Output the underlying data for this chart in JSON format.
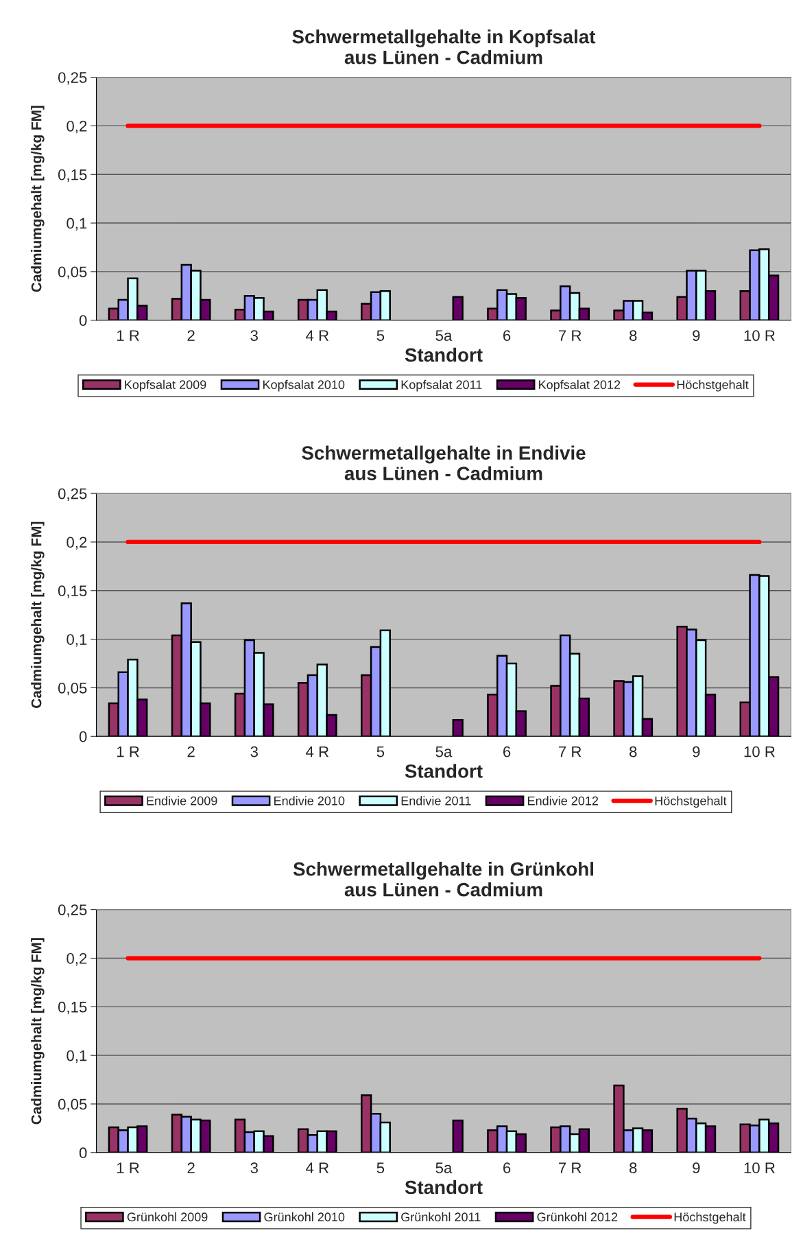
{
  "chart_data": [
    {
      "type": "bar",
      "title": "Schwermetallgehalte in Kopfsalat\naus Lünen - Cadmium",
      "xlabel": "Standort",
      "ylabel": "Cadmiumgehalt [mg/kg FM]",
      "categories": [
        "1 R",
        "2",
        "3",
        "4 R",
        "5",
        "5a",
        "6",
        "7 R",
        "8",
        "9",
        "10 R"
      ],
      "series": [
        {
          "name": "Kopfsalat 2009",
          "color": "#993366",
          "values": [
            0.012,
            0.022,
            0.011,
            0.021,
            0.017,
            null,
            0.012,
            0.01,
            0.01,
            0.024,
            0.03
          ]
        },
        {
          "name": "Kopfsalat 2010",
          "color": "#9999ff",
          "values": [
            0.021,
            0.057,
            0.025,
            0.021,
            0.029,
            null,
            0.031,
            0.035,
            0.02,
            0.051,
            0.072
          ]
        },
        {
          "name": "Kopfsalat 2011",
          "color": "#ccffff",
          "values": [
            0.043,
            0.051,
            0.023,
            0.031,
            0.03,
            null,
            0.027,
            0.028,
            0.02,
            0.051,
            0.073
          ]
        },
        {
          "name": "Kopfsalat 2012",
          "color": "#660066",
          "values": [
            0.015,
            0.021,
            0.009,
            0.009,
            null,
            0.024,
            0.023,
            0.012,
            0.008,
            0.03,
            0.046
          ]
        },
        {
          "name": "Höchstgehalt",
          "type": "line",
          "color": "#ff0000",
          "values": [
            0.2,
            0.2,
            0.2,
            0.2,
            0.2,
            0.2,
            0.2,
            0.2,
            0.2,
            0.2,
            0.2
          ]
        }
      ],
      "ylim": [
        0,
        0.25
      ],
      "yticks": [
        0,
        {
          "value": 0.05,
          "label": "0,05"
        },
        {
          "value": 0.1,
          "label": "0,1"
        },
        {
          "value": 0.15,
          "label": "0,15"
        },
        {
          "value": 0.2,
          "label": "0,2"
        },
        {
          "value": 0.25,
          "label": "0,25"
        }
      ],
      "grid": "y",
      "legend": "bottom"
    },
    {
      "type": "bar",
      "title": "Schwermetallgehalte in Endivie\naus Lünen - Cadmium",
      "xlabel": "Standort",
      "ylabel": "Cadmiumgehalt [mg/kg FM]",
      "categories": [
        "1 R",
        "2",
        "3",
        "4 R",
        "5",
        "5a",
        "6",
        "7 R",
        "8",
        "9",
        "10 R"
      ],
      "series": [
        {
          "name": "Endivie 2009",
          "color": "#993366",
          "values": [
            0.034,
            0.104,
            0.044,
            0.055,
            0.063,
            null,
            0.043,
            0.052,
            0.057,
            0.113,
            0.035
          ]
        },
        {
          "name": "Endivie 2010",
          "color": "#9999ff",
          "values": [
            0.066,
            0.137,
            0.099,
            0.063,
            0.092,
            null,
            0.083,
            0.104,
            0.056,
            0.11,
            0.166
          ]
        },
        {
          "name": "Endivie 2011",
          "color": "#ccffff",
          "values": [
            0.079,
            0.097,
            0.086,
            0.074,
            0.109,
            null,
            0.075,
            0.085,
            0.062,
            0.099,
            0.165
          ]
        },
        {
          "name": "Endivie 2012",
          "color": "#660066",
          "values": [
            0.038,
            0.034,
            0.033,
            0.022,
            null,
            0.017,
            0.026,
            0.039,
            0.018,
            0.043,
            0.061
          ]
        },
        {
          "name": "Höchstgehalt",
          "type": "line",
          "color": "#ff0000",
          "values": [
            0.2,
            0.2,
            0.2,
            0.2,
            0.2,
            0.2,
            0.2,
            0.2,
            0.2,
            0.2,
            0.2
          ]
        }
      ],
      "ylim": [
        0,
        0.25
      ],
      "yticks": [
        0,
        {
          "value": 0.05,
          "label": "0,05"
        },
        {
          "value": 0.1,
          "label": "0,1"
        },
        {
          "value": 0.15,
          "label": "0,15"
        },
        {
          "value": 0.2,
          "label": "0,2"
        },
        {
          "value": 0.25,
          "label": "0,25"
        }
      ],
      "grid": "y",
      "legend": "bottom"
    },
    {
      "type": "bar",
      "title": "Schwermetallgehalte in Grünkohl\naus Lünen - Cadmium",
      "xlabel": "Standort",
      "ylabel": "Cadmiumgehalt [mg/kg FM]",
      "categories": [
        "1 R",
        "2",
        "3",
        "4 R",
        "5",
        "5a",
        "6",
        "7 R",
        "8",
        "9",
        "10 R"
      ],
      "series": [
        {
          "name": "Grünkohl 2009",
          "color": "#993366",
          "values": [
            0.026,
            0.039,
            0.034,
            0.024,
            0.059,
            null,
            0.023,
            0.026,
            0.069,
            0.045,
            0.029
          ]
        },
        {
          "name": "Grünkohl 2010",
          "color": "#9999ff",
          "values": [
            0.023,
            0.037,
            0.021,
            0.018,
            0.04,
            null,
            0.027,
            0.027,
            0.023,
            0.035,
            0.028
          ]
        },
        {
          "name": "Grünkohl 2011",
          "color": "#ccffff",
          "values": [
            0.026,
            0.034,
            0.022,
            0.022,
            0.031,
            null,
            0.022,
            0.019,
            0.025,
            0.03,
            0.034
          ]
        },
        {
          "name": "Grünkohl 2012",
          "color": "#660066",
          "values": [
            0.027,
            0.033,
            0.017,
            0.022,
            null,
            0.033,
            0.019,
            0.024,
            0.023,
            0.027,
            0.03
          ]
        },
        {
          "name": "Höchstgehalt",
          "type": "line",
          "color": "#ff0000",
          "values": [
            0.2,
            0.2,
            0.2,
            0.2,
            0.2,
            0.2,
            0.2,
            0.2,
            0.2,
            0.2,
            0.2
          ]
        }
      ],
      "ylim": [
        0,
        0.25
      ],
      "yticks": [
        0,
        {
          "value": 0.05,
          "label": "0,05"
        },
        {
          "value": 0.1,
          "label": "0,1"
        },
        {
          "value": 0.15,
          "label": "0,15"
        },
        {
          "value": 0.2,
          "label": "0,2"
        },
        {
          "value": 0.25,
          "label": "0,25"
        }
      ],
      "grid": "y",
      "legend": "bottom"
    }
  ]
}
